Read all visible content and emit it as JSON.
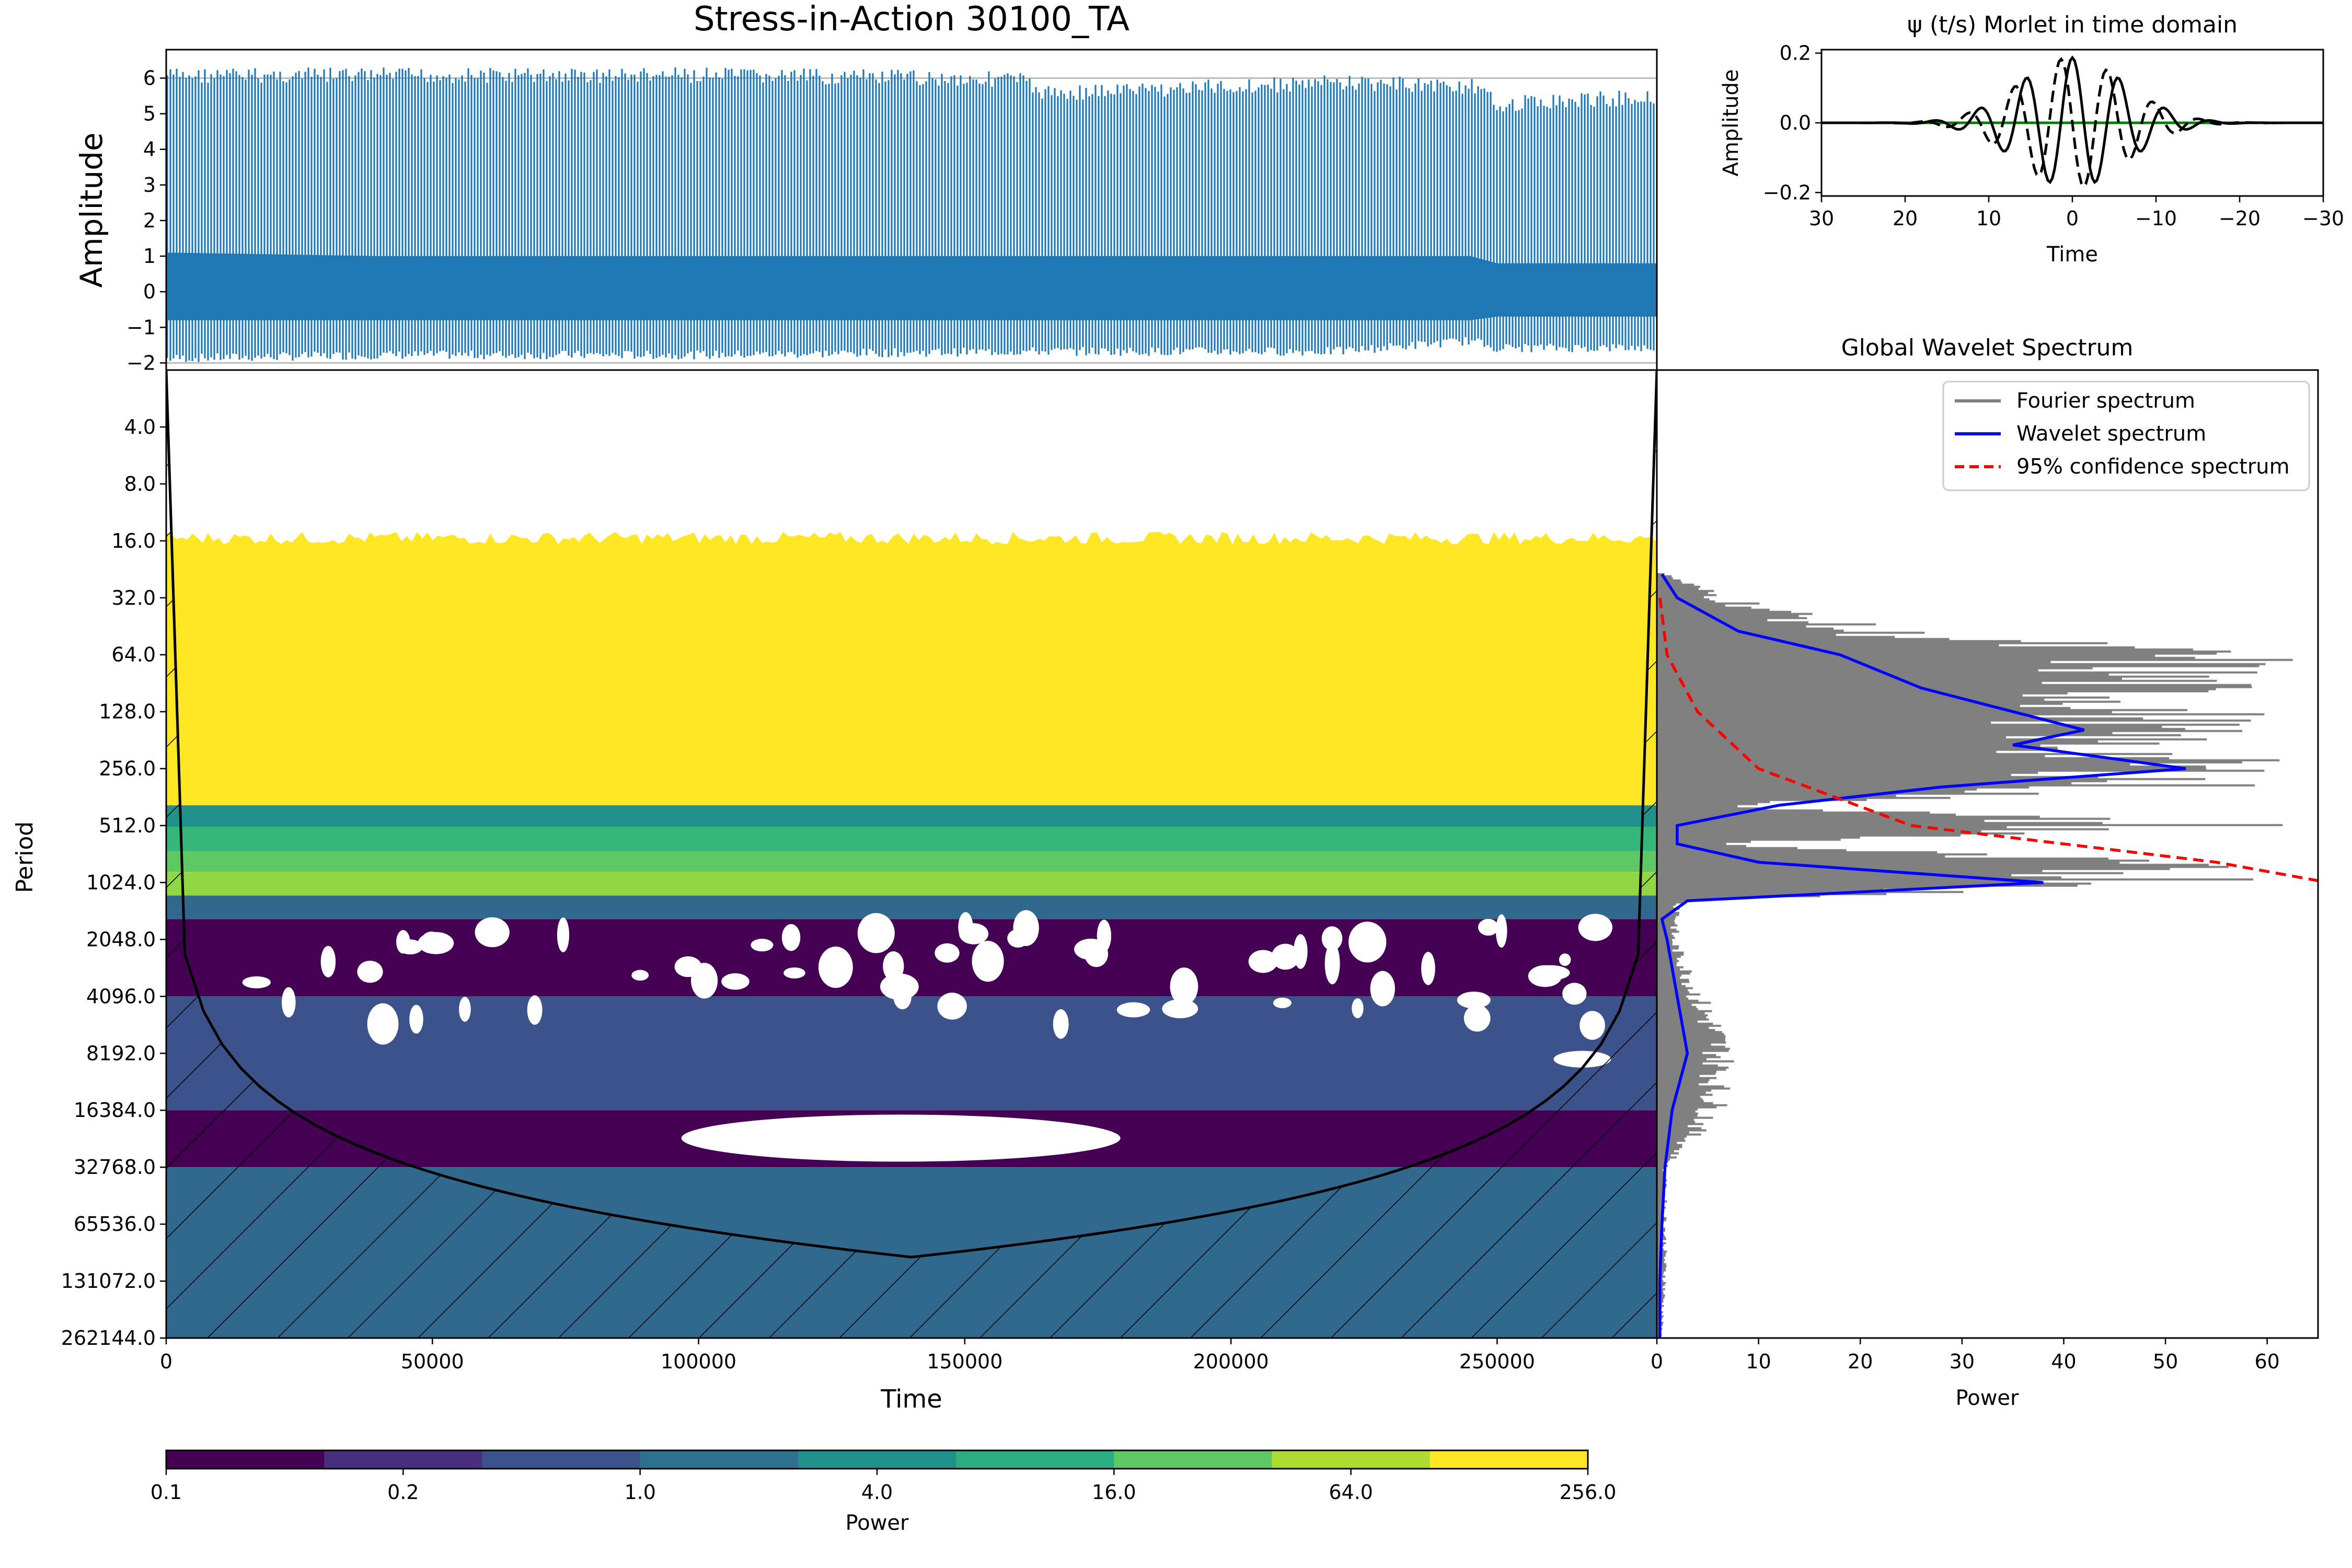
{
  "chart_data": [
    {
      "id": "signal",
      "type": "line",
      "title": "Stress-in-Action 30100_TA",
      "xlabel": "",
      "ylabel": "Amplitude",
      "xlim": [
        0,
        280000
      ],
      "ylim": [
        -2.2,
        6.8
      ],
      "yticks": [
        6,
        5,
        4,
        3,
        2,
        1,
        0,
        -1,
        -2
      ],
      "ytick_labels": [
        "6",
        "5",
        "4",
        "3",
        "2",
        "1",
        "0",
        "−1",
        "−2"
      ],
      "hlines": [
        6.0,
        -2.0
      ],
      "series": [
        {
          "color": "#1f77b4",
          "envelope": {
            "x": [
              0,
              40000,
              100000,
              160000,
              165000,
              220000,
              245000,
              250000,
              280000
            ],
            "upper": [
              6.3,
              6.3,
              6.3,
              6.2,
              5.8,
              6.1,
              6.0,
              5.5,
              5.7
            ],
            "lower": [
              -2.0,
              -1.9,
              -1.9,
              -1.8,
              -1.8,
              -1.8,
              -1.5,
              -1.7,
              -1.7
            ],
            "band_upper": [
              1.1,
              1.0,
              1.0,
              1.0,
              1.0,
              1.0,
              1.0,
              0.8,
              0.8
            ],
            "band_lower": [
              -0.8,
              -0.8,
              -0.8,
              -0.8,
              -0.8,
              -0.8,
              -0.8,
              -0.7,
              -0.7
            ]
          }
        }
      ]
    },
    {
      "id": "morlet",
      "type": "line",
      "title": "ψ (t/s) Morlet in time domain",
      "xlabel": "Time",
      "ylabel": "Amplitude",
      "xlim": [
        30,
        -30
      ],
      "ylim": [
        -0.21,
        0.21
      ],
      "xticks": [
        30,
        20,
        10,
        0,
        -10,
        -20,
        -30
      ],
      "xtick_labels": [
        "30",
        "20",
        "10",
        "0",
        "−10",
        "−20",
        "−30"
      ],
      "yticks": [
        0.2,
        0.0,
        -0.2
      ],
      "ytick_labels": [
        "0.2",
        "0.0",
        "−0.2"
      ],
      "omega0": 6,
      "series": [
        {
          "part": "real",
          "color": "#000000",
          "style": "solid"
        },
        {
          "part": "imaginary",
          "color": "#000000",
          "style": "dashed"
        },
        {
          "part": "zero",
          "color": "#008000",
          "style": "solid"
        }
      ]
    },
    {
      "id": "scalogram",
      "type": "heatmap",
      "xlabel": "Time",
      "ylabel": "Period",
      "xlim": [
        0,
        280000
      ],
      "xticks": [
        0,
        50000,
        100000,
        150000,
        200000,
        250000
      ],
      "xtick_labels": [
        "0",
        "50000",
        "100000",
        "150000",
        "200000",
        "250000"
      ],
      "ylim_period": [
        2.0,
        262144.0
      ],
      "yscale": "log2",
      "ytick_labels": [
        "4.0",
        "8.0",
        "16.0",
        "32.0",
        "64.0",
        "128.0",
        "256.0",
        "512.0",
        "1024.0",
        "2048.0",
        "4096.0",
        "8192.0",
        "16384.0",
        "32768.0",
        "65536.0",
        "131072.0",
        "262144.0"
      ],
      "bands": [
        {
          "from": 18,
          "to": 400,
          "power": 256,
          "color": "#fde725"
        },
        {
          "from": 400,
          "to": 520,
          "power": 16,
          "color": "#21918c"
        },
        {
          "from": 520,
          "to": 700,
          "power": 4,
          "color": "#35b779"
        },
        {
          "from": 700,
          "to": 900,
          "power": 16,
          "color": "#5ec962"
        },
        {
          "from": 900,
          "to": 1200,
          "power": 64,
          "color": "#90d743"
        },
        {
          "from": 1200,
          "to": 1600,
          "power": 1,
          "color": "#31688e"
        },
        {
          "from": 1600,
          "to": 4096,
          "power": 0.2,
          "color": "#440154"
        },
        {
          "from": 4096,
          "to": 16384,
          "power": 1,
          "color": "#3b528b"
        },
        {
          "from": 16384,
          "to": 32768,
          "power": 0.1,
          "color": "#440154"
        },
        {
          "from": 32768,
          "to": 262144,
          "power": 1,
          "color": "#31688e"
        }
      ],
      "cone_of_influence_apex": {
        "time": 143000,
        "period": 100000
      }
    },
    {
      "id": "global-spectrum",
      "type": "line",
      "title": "Global Wavelet Spectrum",
      "xlabel": "Power",
      "xlim": [
        0,
        65
      ],
      "xticks": [
        0,
        10,
        20,
        30,
        40,
        50,
        60
      ],
      "xtick_labels": [
        "0",
        "10",
        "20",
        "30",
        "40",
        "50",
        "60"
      ],
      "legend": "top-right",
      "series": [
        {
          "name": "Fourier spectrum",
          "color": "#808080",
          "period": [
            24,
            32,
            48,
            64,
            96,
            128,
            192,
            256,
            320,
            400,
            512,
            640,
            800,
            1024,
            1280,
            2048,
            4096,
            6000,
            8192,
            16384,
            32768,
            65536,
            131072,
            262144
          ],
          "power": [
            1,
            8,
            25,
            65,
            60,
            62,
            55,
            65,
            60,
            10,
            65,
            8,
            55,
            65,
            3,
            2,
            5,
            7,
            8,
            7,
            1,
            1,
            1,
            0.5
          ]
        },
        {
          "name": "Wavelet spectrum",
          "color": "#0000ff",
          "period": [
            24,
            32,
            48,
            64,
            96,
            128,
            160,
            192,
            256,
            320,
            400,
            512,
            640,
            800,
            1024,
            1280,
            1600,
            2048,
            4096,
            8192,
            16384,
            32768,
            65536,
            131072,
            262144
          ],
          "power": [
            0.5,
            2,
            8,
            18,
            26,
            35,
            42,
            35,
            52,
            28,
            12,
            2,
            2,
            10,
            38,
            3,
            0.5,
            1,
            2,
            3,
            1.5,
            0.8,
            0.5,
            0.3,
            0.3
          ]
        },
        {
          "name": "95% confidence spectrum",
          "color": "#ff0000",
          "style": "dashed",
          "period": [
            32,
            64,
            128,
            256,
            512,
            640,
            800,
            1024
          ],
          "power": [
            0.3,
            1,
            4,
            10,
            25,
            40,
            55,
            66
          ]
        }
      ]
    },
    {
      "id": "colorbar",
      "type": "table",
      "xlabel": "Power",
      "levels": [
        0.1,
        0.2,
        1.0,
        4.0,
        16.0,
        64.0,
        256.0
      ],
      "tick_labels": [
        "0.1",
        "0.2",
        "1.0",
        "4.0",
        "16.0",
        "64.0",
        "256.0"
      ],
      "colors": [
        "#440154",
        "#472f7d",
        "#3b528b",
        "#2c728e",
        "#21918c",
        "#28ae80",
        "#5ec962",
        "#addc30",
        "#fde725"
      ]
    }
  ]
}
